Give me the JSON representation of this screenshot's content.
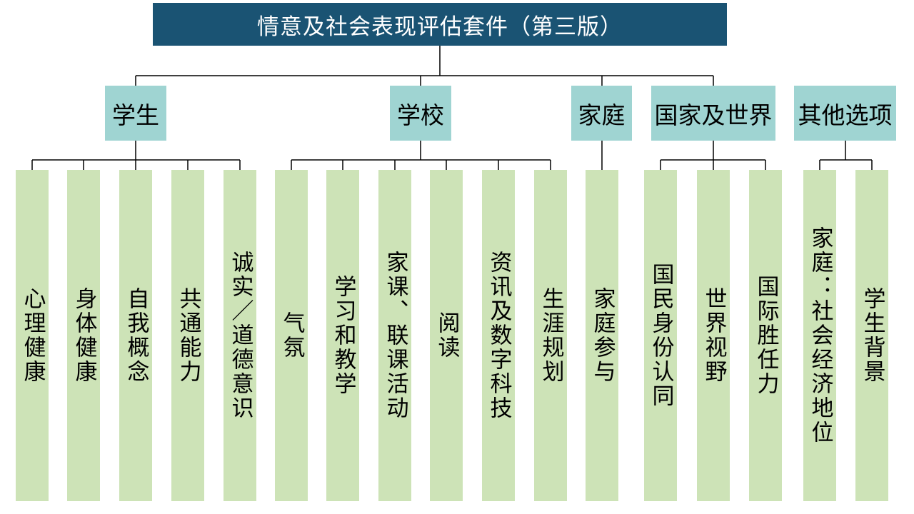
{
  "title": "情意及社会表现评估套件（第三版）",
  "colors": {
    "title_bg": "#1a5373",
    "title_text": "#ffffff",
    "category_bg": "#9fd4d2",
    "leaf_bg": "#cde3b7",
    "connector": "#000000"
  },
  "categories": [
    {
      "label": "学生",
      "items": [
        "心理健康",
        "身体健康",
        "自我概念",
        "共通能力",
        "诚实／道德意识"
      ]
    },
    {
      "label": "学校",
      "items": [
        "气氛",
        "学习和教学",
        "家课、联课活动",
        "阅读",
        "资讯及数字科技",
        "生涯规划"
      ]
    },
    {
      "label": "家庭",
      "items": [
        "家庭参与"
      ]
    },
    {
      "label": "国家及世界",
      "items": [
        "国民身份认同",
        "世界视野",
        "国际胜任力"
      ]
    },
    {
      "label": "其他选项",
      "items": [
        "家庭：社会经济地位",
        "学生背景"
      ]
    }
  ]
}
